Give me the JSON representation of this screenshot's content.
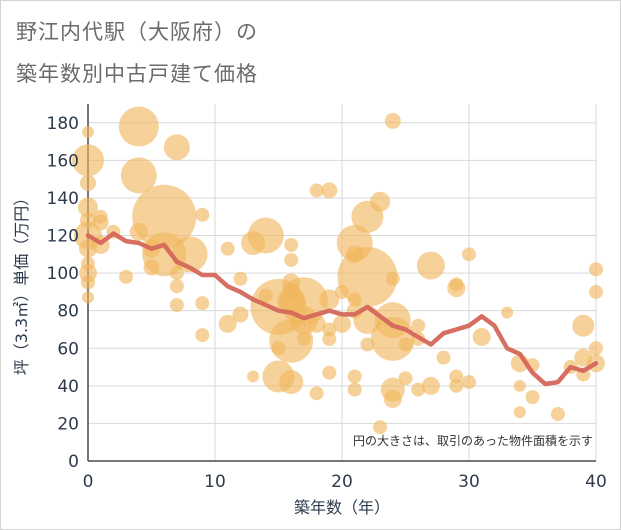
{
  "title_lines": [
    "野江内代駅（大阪府）の",
    "築年数別中古戸建て価格"
  ],
  "chart_data": {
    "type": "scatter",
    "xlabel": "築年数（年）",
    "ylabel": "坪（3.3㎡）単価（万円）",
    "xlim": [
      0,
      40
    ],
    "ylim": [
      0,
      190
    ],
    "xticks": [
      0,
      10,
      20,
      30,
      40
    ],
    "yticks": [
      0,
      20,
      40,
      60,
      80,
      100,
      120,
      140,
      160,
      180
    ],
    "grid": true,
    "annotation": "円の大きさは、取引のあった物件面積を示す",
    "colors": {
      "bubble": "#f0b65c",
      "line": "#d4675a",
      "axis": "#4a4a4a",
      "grid": "#d9d9d9",
      "text": "#2e3b4e"
    },
    "series": [
      {
        "kind": "bubble",
        "points": [
          [
            0,
            175,
            6
          ],
          [
            0,
            160,
            16
          ],
          [
            0,
            148,
            8
          ],
          [
            0,
            135,
            10
          ],
          [
            0,
            128,
            8
          ],
          [
            0,
            120,
            14
          ],
          [
            0,
            113,
            9
          ],
          [
            0,
            105,
            7
          ],
          [
            0,
            100,
            9
          ],
          [
            0,
            95,
            7
          ],
          [
            0,
            87,
            6
          ],
          [
            1,
            130,
            7
          ],
          [
            1,
            127,
            8
          ],
          [
            1,
            115,
            9
          ],
          [
            2,
            122,
            7
          ],
          [
            3,
            98,
            7
          ],
          [
            4,
            178,
            20
          ],
          [
            4,
            152,
            18
          ],
          [
            4,
            122,
            9
          ],
          [
            5,
            113,
            9
          ],
          [
            5,
            103,
            8
          ],
          [
            6,
            130,
            32
          ],
          [
            6,
            110,
            22
          ],
          [
            7,
            167,
            13
          ],
          [
            7,
            100,
            7
          ],
          [
            7,
            93,
            7
          ],
          [
            7,
            83,
            7
          ],
          [
            8,
            110,
            18
          ],
          [
            9,
            131,
            7
          ],
          [
            9,
            84,
            7
          ],
          [
            9,
            67,
            7
          ],
          [
            11,
            113,
            7
          ],
          [
            11,
            73,
            9
          ],
          [
            12,
            97,
            7
          ],
          [
            12,
            78,
            8
          ],
          [
            13,
            116,
            12
          ],
          [
            13,
            45,
            6
          ],
          [
            14,
            120,
            18
          ],
          [
            14,
            88,
            7
          ],
          [
            15,
            82,
            28
          ],
          [
            15,
            45,
            16
          ],
          [
            15,
            60,
            7
          ],
          [
            16,
            115,
            7
          ],
          [
            16,
            107,
            7
          ],
          [
            16,
            90,
            9
          ],
          [
            16,
            85,
            14
          ],
          [
            16,
            64,
            22
          ],
          [
            16,
            42,
            12
          ],
          [
            16,
            95,
            9
          ],
          [
            17,
            85,
            24
          ],
          [
            17,
            75,
            14
          ],
          [
            17,
            65,
            7
          ],
          [
            18,
            144,
            7
          ],
          [
            18,
            73,
            9
          ],
          [
            18,
            36,
            7
          ],
          [
            19,
            144,
            8
          ],
          [
            19,
            86,
            10
          ],
          [
            19,
            70,
            7
          ],
          [
            19,
            65,
            7
          ],
          [
            19,
            47,
            7
          ],
          [
            20,
            73,
            9
          ],
          [
            20,
            90,
            7
          ],
          [
            21,
            116,
            18
          ],
          [
            21,
            110,
            9
          ],
          [
            21,
            86,
            7
          ],
          [
            21,
            80,
            8
          ],
          [
            21,
            45,
            7
          ],
          [
            21,
            38,
            7
          ],
          [
            22,
            130,
            16
          ],
          [
            22,
            98,
            30
          ],
          [
            22,
            75,
            14
          ],
          [
            22,
            62,
            7
          ],
          [
            23,
            138,
            10
          ],
          [
            23,
            18,
            7
          ],
          [
            24,
            181,
            8
          ],
          [
            24,
            75,
            18
          ],
          [
            24,
            65,
            22
          ],
          [
            24,
            38,
            12
          ],
          [
            24,
            33,
            9
          ],
          [
            24,
            97,
            7
          ],
          [
            25,
            44,
            7
          ],
          [
            25,
            62,
            7
          ],
          [
            26,
            72,
            7
          ],
          [
            26,
            65,
            7
          ],
          [
            26,
            38,
            7
          ],
          [
            27,
            104,
            14
          ],
          [
            27,
            40,
            9
          ],
          [
            28,
            55,
            7
          ],
          [
            29,
            94,
            7
          ],
          [
            29,
            92,
            9
          ],
          [
            29,
            45,
            7
          ],
          [
            29,
            40,
            7
          ],
          [
            30,
            110,
            7
          ],
          [
            30,
            42,
            7
          ],
          [
            31,
            66,
            9
          ],
          [
            33,
            79,
            6
          ],
          [
            34,
            52,
            9
          ],
          [
            34,
            40,
            6
          ],
          [
            34,
            26,
            6
          ],
          [
            35,
            34,
            7
          ],
          [
            35,
            51,
            7
          ],
          [
            37,
            25,
            7
          ],
          [
            38,
            50,
            7
          ],
          [
            39,
            55,
            9
          ],
          [
            39,
            46,
            7
          ],
          [
            39,
            72,
            11
          ],
          [
            40,
            102,
            7
          ],
          [
            40,
            90,
            7
          ],
          [
            40,
            60,
            7
          ],
          [
            40,
            52,
            9
          ]
        ]
      },
      {
        "kind": "line",
        "x": [
          0,
          1,
          2,
          3,
          4,
          5,
          6,
          7,
          8,
          9,
          10,
          11,
          12,
          13,
          14,
          15,
          16,
          17,
          18,
          19,
          20,
          21,
          22,
          23,
          24,
          25,
          26,
          27,
          28,
          29,
          30,
          31,
          32,
          33,
          34,
          35,
          36,
          37,
          38,
          39,
          40
        ],
        "y": [
          120,
          116,
          121,
          117,
          116,
          113,
          115,
          106,
          103,
          99,
          99,
          93,
          90,
          86,
          83,
          80,
          79,
          76,
          78,
          80,
          78,
          78,
          82,
          77,
          72,
          70,
          66,
          62,
          68,
          70,
          72,
          77,
          72,
          60,
          57,
          47,
          41,
          42,
          50,
          48,
          52
        ]
      }
    ]
  }
}
